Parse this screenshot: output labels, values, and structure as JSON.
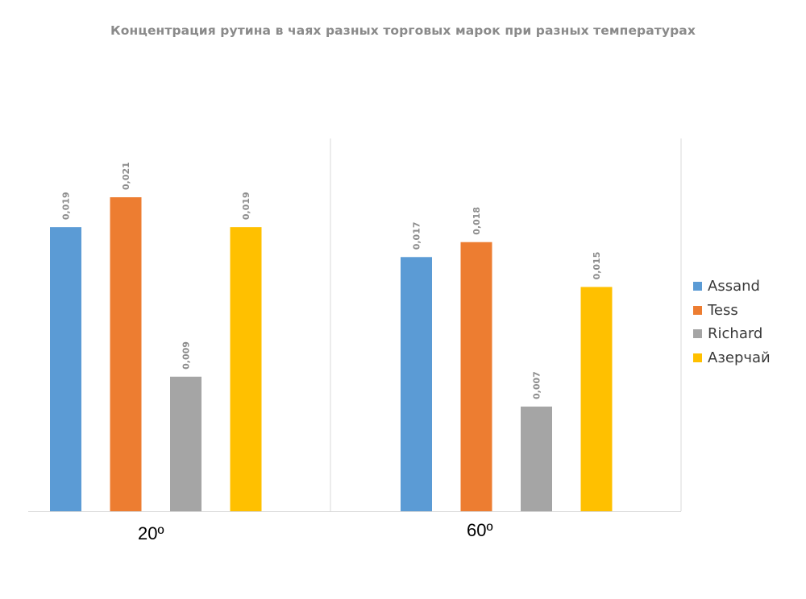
{
  "chart_data": {
    "type": "bar",
    "title": "Концентрация рутина в чаях разных торговых марок при разных температурах",
    "categories": [
      "20º",
      "60º"
    ],
    "series": [
      {
        "name": "Assand",
        "color": "#5b9bd5",
        "values": [
          0.019,
          0.017
        ],
        "labels": [
          "0,019",
          "0,017"
        ]
      },
      {
        "name": "Tess",
        "color": "#ed7d31",
        "values": [
          0.021,
          0.018
        ],
        "labels": [
          "0,021",
          "0,018"
        ]
      },
      {
        "name": "Richard",
        "color": "#a5a5a5",
        "values": [
          0.009,
          0.007
        ],
        "labels": [
          "0,009",
          "0,007"
        ]
      },
      {
        "name": "Азерчай",
        "color": "#ffc000",
        "values": [
          0.019,
          0.015
        ],
        "labels": [
          "0,019",
          "0,015"
        ]
      }
    ],
    "xlabel": "",
    "ylabel": "",
    "ylim": [
      0,
      0.021
    ],
    "legend_position": "right",
    "grid": false
  }
}
